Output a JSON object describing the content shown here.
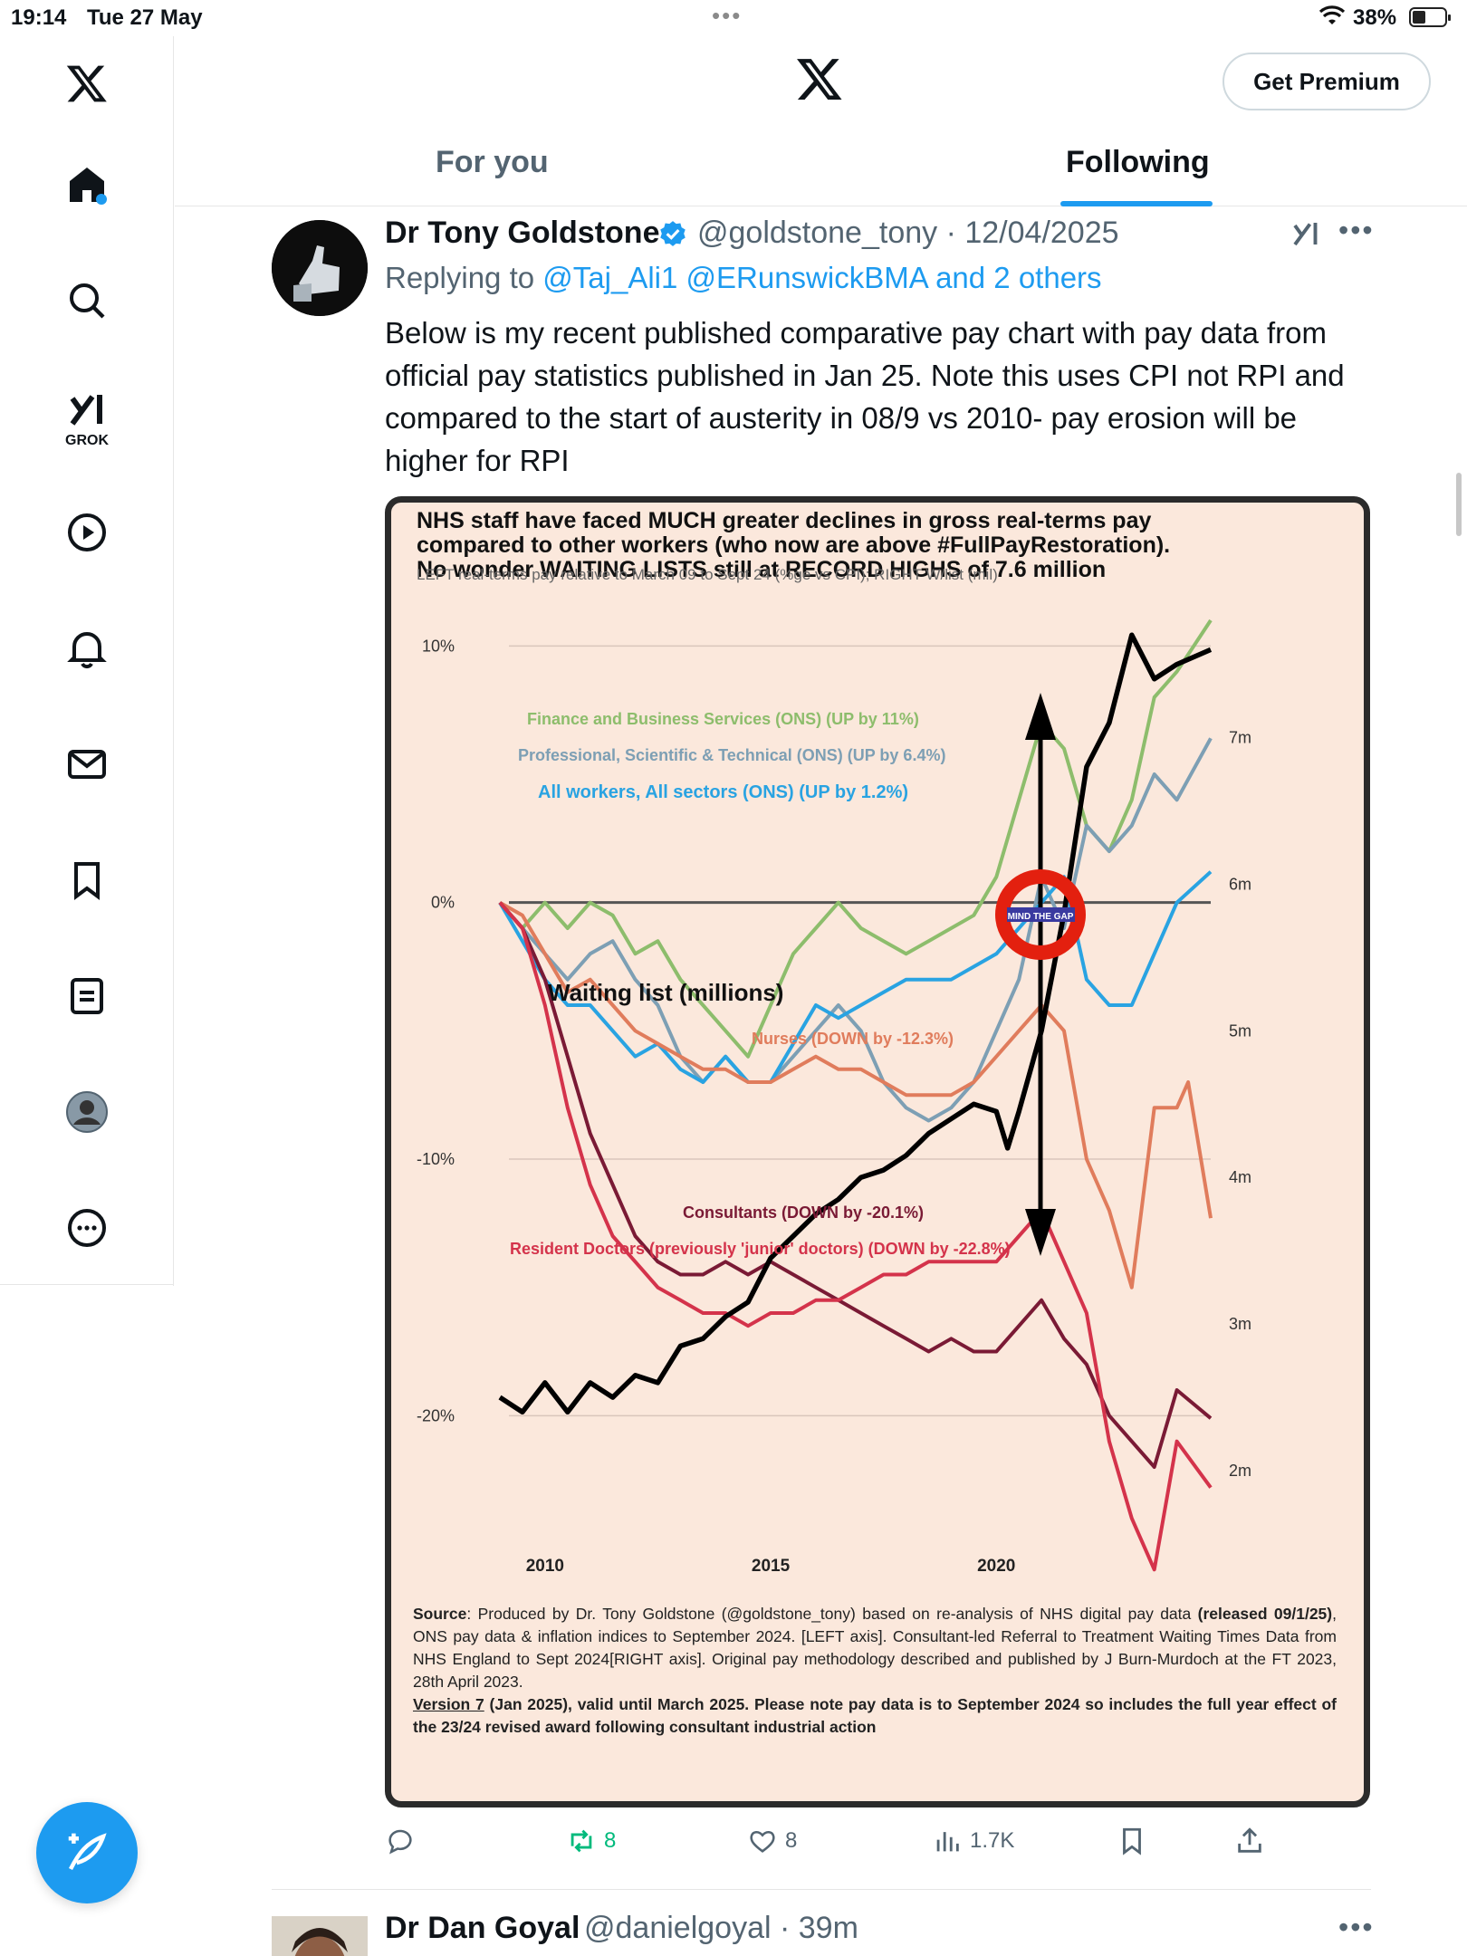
{
  "status_bar": {
    "time": "19:14",
    "date": "Tue 27 May",
    "battery": "38%"
  },
  "header": {
    "premium_label": "Get Premium",
    "tabs": [
      {
        "label": "For you"
      },
      {
        "label": "Following"
      }
    ]
  },
  "sidebar": {
    "grok_label": "GROK",
    "accent_color": "#1d9bf0"
  },
  "tweet": {
    "author_name": "Dr Tony Goldstone",
    "author_handle": "@goldstone_tony · 12/04/2025",
    "reply_prefix": "Replying to",
    "reply_mentions": "@Taj_Ali1 @ERunswickBMA and 2 others",
    "text": "Below is my recent published comparative pay chart with pay data from official pay statistics published in Jan 25. Note this uses CPI not RPI and compared to the start of austerity in 08/9 vs 2010- pay erosion will be higher for RPI",
    "actions": {
      "retweets": "8",
      "likes": "8",
      "views": "1.7K"
    }
  },
  "next_tweet": {
    "author_name": "Dr Dan Goyal",
    "author_handle": "@danielgoyal · 39m"
  },
  "chart_data": {
    "type": "line",
    "title_lines": [
      "NHS staff have faced MUCH greater declines in gross real-terms pay",
      "compared to other workers (who now are above #FullPayRestoration).",
      "No wonder WAITING LISTS still at RECORD HIGHS of 7.6 million"
    ],
    "subtitle": "LEFT real-terms pay relative to March 09 to Sept 24 (%ge vs CPI); RIGHT W/list (mil)",
    "x_ticks": [
      "2010",
      "2015",
      "2020"
    ],
    "y_left_ticks": [
      "10%",
      "0%",
      "-10%",
      "-20%"
    ],
    "y_right_ticks": [
      "7m",
      "6m",
      "5m",
      "4m",
      "3m",
      "2m"
    ],
    "ylim_left": [
      -25,
      11
    ],
    "ylim_right": [
      1.5,
      7.8
    ],
    "x_range": [
      2009.0,
      2024.75
    ],
    "series": [
      {
        "name": "Finance and Business Services (ONS) (UP by 11%)",
        "color": "#8dbd6c",
        "x": [
          2009.0,
          2009.5,
          2010.0,
          2010.5,
          2011.0,
          2011.5,
          2012.0,
          2012.5,
          2013.0,
          2013.5,
          2014.0,
          2014.5,
          2015.0,
          2015.5,
          2016.0,
          2016.5,
          2017.0,
          2017.5,
          2018.0,
          2018.5,
          2019.0,
          2019.5,
          2020.0,
          2020.5,
          2021.0,
          2021.5,
          2022.0,
          2022.5,
          2023.0,
          2023.5,
          2024.0,
          2024.75
        ],
        "y": [
          0,
          -1,
          0,
          -1,
          0,
          -0.5,
          -2,
          -1.5,
          -3,
          -4,
          -5,
          -6,
          -4,
          -2,
          -1,
          0,
          -1,
          -1.5,
          -2,
          -1.5,
          -1,
          -0.5,
          1,
          4,
          7,
          6,
          3,
          2,
          4,
          8,
          9,
          11
        ]
      },
      {
        "name": "Professional, Scientific & Technical (ONS) (UP by 6.4%)",
        "color": "#7d9fb4",
        "x": [
          2009.0,
          2009.5,
          2010.0,
          2010.5,
          2011.0,
          2011.5,
          2012.0,
          2012.5,
          2013.0,
          2013.5,
          2014.0,
          2014.5,
          2015.0,
          2015.5,
          2016.0,
          2016.5,
          2017.0,
          2017.5,
          2018.0,
          2018.5,
          2019.0,
          2019.5,
          2020.0,
          2020.5,
          2021.0,
          2021.5,
          2022.0,
          2022.5,
          2023.0,
          2023.5,
          2024.0,
          2024.75
        ],
        "y": [
          0,
          -1,
          -2,
          -3,
          -2,
          -1.5,
          -3,
          -4,
          -6,
          -7,
          -6,
          -7,
          -7,
          -6,
          -5,
          -4,
          -5,
          -7,
          -8,
          -8.5,
          -8,
          -7,
          -5,
          -3,
          1,
          -1,
          3,
          2,
          3,
          5,
          4,
          6.4
        ]
      },
      {
        "name": "All workers, All sectors (ONS) (UP by 1.2%)",
        "color": "#29a3e2",
        "x": [
          2009.0,
          2009.5,
          2010.0,
          2010.5,
          2011.0,
          2011.5,
          2012.0,
          2012.5,
          2013.0,
          2013.5,
          2014.0,
          2014.5,
          2015.0,
          2015.5,
          2016.0,
          2016.5,
          2017.0,
          2017.5,
          2018.0,
          2018.5,
          2019.0,
          2019.5,
          2020.0,
          2020.5,
          2021.0,
          2021.5,
          2022.0,
          2022.5,
          2023.0,
          2023.5,
          2024.0,
          2024.75
        ],
        "y": [
          0,
          -1.5,
          -3,
          -4,
          -4,
          -5,
          -6,
          -5.5,
          -6.5,
          -7,
          -6,
          -7,
          -7,
          -5.5,
          -4,
          -4.5,
          -4,
          -3.5,
          -3,
          -3,
          -3,
          -2.5,
          -2,
          -1,
          0,
          1,
          -3,
          -4,
          -4,
          -2,
          0,
          1.2
        ]
      },
      {
        "name": "Nurses (DOWN by -12.3%)",
        "color": "#e07c5c",
        "x": [
          2009.0,
          2009.5,
          2010.0,
          2010.5,
          2011.0,
          2011.5,
          2012.0,
          2012.5,
          2013.0,
          2013.5,
          2014.0,
          2014.5,
          2015.0,
          2015.5,
          2016.0,
          2016.5,
          2017.0,
          2017.5,
          2018.0,
          2018.5,
          2019.0,
          2019.5,
          2020.0,
          2020.5,
          2021.0,
          2021.5,
          2022.0,
          2022.5,
          2023.0,
          2023.5,
          2024.0,
          2024.25,
          2024.75
        ],
        "y": [
          0,
          -0.5,
          -2,
          -3.5,
          -3,
          -4,
          -5,
          -5.5,
          -6,
          -6.5,
          -6.5,
          -7,
          -7,
          -6.5,
          -6,
          -6.5,
          -6.5,
          -7,
          -7.5,
          -7.5,
          -7.5,
          -7,
          -6,
          -5,
          -4,
          -5,
          -10,
          -12,
          -15,
          -8,
          -8,
          -7,
          -12.3
        ]
      },
      {
        "name": "Consultants (DOWN by -20.1%)",
        "color": "#7a1a35",
        "x": [
          2009.0,
          2009.5,
          2010.0,
          2010.5,
          2011.0,
          2011.5,
          2012.0,
          2012.5,
          2013.0,
          2013.5,
          2014.0,
          2014.5,
          2015.0,
          2015.5,
          2016.0,
          2016.5,
          2017.0,
          2017.5,
          2018.0,
          2018.5,
          2019.0,
          2019.5,
          2020.0,
          2020.5,
          2021.0,
          2021.5,
          2022.0,
          2022.5,
          2023.0,
          2023.5,
          2024.0,
          2024.75
        ],
        "y": [
          0,
          -1,
          -3,
          -6,
          -9,
          -11,
          -13,
          -14,
          -14.5,
          -14.5,
          -14,
          -14.5,
          -14,
          -14.5,
          -15,
          -15.5,
          -16,
          -16.5,
          -17,
          -17.5,
          -17,
          -17.5,
          -17.5,
          -16.5,
          -15.5,
          -17,
          -18,
          -20,
          -21,
          -22,
          -19,
          -20.1
        ]
      },
      {
        "name": "Resident Doctors (previously 'junior' doctors) (DOWN by -22.8%)",
        "color": "#d4334b",
        "x": [
          2009.0,
          2009.5,
          2010.0,
          2010.5,
          2011.0,
          2011.5,
          2012.0,
          2012.5,
          2013.0,
          2013.5,
          2014.0,
          2014.5,
          2015.0,
          2015.5,
          2016.0,
          2016.5,
          2017.0,
          2017.5,
          2018.0,
          2018.5,
          2019.0,
          2019.5,
          2020.0,
          2020.5,
          2021.0,
          2021.5,
          2022.0,
          2022.5,
          2023.0,
          2023.5,
          2024.0,
          2024.75
        ],
        "y": [
          0,
          -1,
          -4,
          -8,
          -11,
          -13,
          -14,
          -15,
          -15.5,
          -16,
          -16,
          -16.5,
          -16,
          -16,
          -15.5,
          -15.5,
          -15,
          -14.5,
          -14.5,
          -14,
          -14,
          -14,
          -14,
          -13,
          -12,
          -14,
          -16,
          -21,
          -24,
          -26,
          -21,
          -22.8
        ]
      }
    ],
    "waiting_list": {
      "name": "Waiting list (millions)",
      "color": "#000000",
      "x": [
        2009.0,
        2009.5,
        2010.0,
        2010.5,
        2011.0,
        2011.5,
        2012.0,
        2012.5,
        2013.0,
        2013.5,
        2014.0,
        2014.5,
        2015.0,
        2015.5,
        2016.0,
        2016.5,
        2017.0,
        2017.5,
        2018.0,
        2018.5,
        2019.0,
        2019.5,
        2020.0,
        2020.25,
        2020.5,
        2021.0,
        2021.5,
        2022.0,
        2022.5,
        2023.0,
        2023.5,
        2024.0,
        2024.75
      ],
      "y": [
        2.5,
        2.4,
        2.6,
        2.4,
        2.6,
        2.5,
        2.65,
        2.6,
        2.85,
        2.9,
        3.05,
        3.15,
        3.45,
        3.6,
        3.75,
        3.85,
        4.0,
        4.05,
        4.15,
        4.3,
        4.4,
        4.5,
        4.45,
        4.2,
        4.45,
        5.0,
        5.8,
        6.8,
        7.1,
        7.7,
        7.4,
        7.5,
        7.6
      ]
    },
    "annotations": {
      "waiting_list_label": "Waiting list (millions)",
      "mind_the_gap": "MIND THE GAP"
    },
    "footnote": {
      "source_label": "Source",
      "source_text": ": Produced by Dr. Tony Goldstone (@goldstone_tony) based on re-analysis of NHS digital pay data",
      "released": " (released 09/1/25)",
      "line2": ", ONS pay data & inflation indices to September 2024. [LEFT axis]. Consultant-led Referral to Treatment Waiting Times Data from NHS England to Sept 2024[RIGHT axis]. Original pay methodology described and published by J Burn-Murdoch at the FT 2023, 28th April 2023.",
      "version_label": "Version 7",
      "version_text": " (Jan 2025), valid until March 2025. Please note pay data is to September 2024 so includes the full year effect of the 23/24 revised award following consultant industrial action"
    }
  }
}
